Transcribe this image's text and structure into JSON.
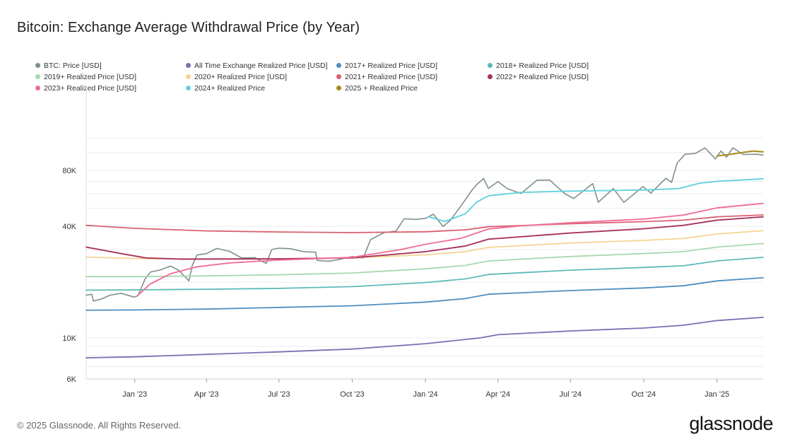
{
  "title": "Bitcoin: Exchange Average Withdrawal Price (by Year)",
  "footer": "© 2025 Glassnode. All Rights Reserved.",
  "logo": "glassnode",
  "chart_data": {
    "type": "line",
    "title": "Bitcoin: Exchange Average Withdrawal Price (by Year)",
    "yscale": "log",
    "ylim": [
      6000,
      130000
    ],
    "xlim": [
      "2022-11-01",
      "2025-02-28"
    ],
    "y_ticks": [
      {
        "value": 6000,
        "label": "6K"
      },
      {
        "value": 10000,
        "label": "10K"
      },
      {
        "value": 40000,
        "label": "40K"
      },
      {
        "value": 80000,
        "label": "80K"
      }
    ],
    "x_ticks": [
      {
        "date": "2023-01-01",
        "label": "Jan '23"
      },
      {
        "date": "2023-04-01",
        "label": "Apr '23"
      },
      {
        "date": "2023-07-01",
        "label": "Jul '23"
      },
      {
        "date": "2023-10-01",
        "label": "Oct '23"
      },
      {
        "date": "2024-01-01",
        "label": "Jan '24"
      },
      {
        "date": "2024-04-01",
        "label": "Apr '24"
      },
      {
        "date": "2024-07-01",
        "label": "Jul '24"
      },
      {
        "date": "2024-10-01",
        "label": "Oct '24"
      },
      {
        "date": "2025-01-01",
        "label": "Jan '25"
      }
    ],
    "legend_placement": "top",
    "grid": "horizontal",
    "series": [
      {
        "name": "BTC: Price [USD]",
        "color": "#7f918c",
        "width": 1.6,
        "points": [
          [
            "2022-11-01",
            17000
          ],
          [
            "2022-11-08",
            17200
          ],
          [
            "2022-11-10",
            15800
          ],
          [
            "2022-11-20",
            16200
          ],
          [
            "2022-12-01",
            17000
          ],
          [
            "2022-12-15",
            17400
          ],
          [
            "2022-12-31",
            16600
          ],
          [
            "2023-01-05",
            16900
          ],
          [
            "2023-01-14",
            20800
          ],
          [
            "2023-01-21",
            22700
          ],
          [
            "2023-02-01",
            23200
          ],
          [
            "2023-02-15",
            24400
          ],
          [
            "2023-02-25",
            23200
          ],
          [
            "2023-03-10",
            20300
          ],
          [
            "2023-03-14",
            24500
          ],
          [
            "2023-03-20",
            28000
          ],
          [
            "2023-04-01",
            28500
          ],
          [
            "2023-04-14",
            30400
          ],
          [
            "2023-04-30",
            29300
          ],
          [
            "2023-05-15",
            27000
          ],
          [
            "2023-06-01",
            27100
          ],
          [
            "2023-06-15",
            25200
          ],
          [
            "2023-06-22",
            30000
          ],
          [
            "2023-07-01",
            30500
          ],
          [
            "2023-07-15",
            30300
          ],
          [
            "2023-08-01",
            29200
          ],
          [
            "2023-08-16",
            29000
          ],
          [
            "2023-08-18",
            26200
          ],
          [
            "2023-09-01",
            25900
          ],
          [
            "2023-09-15",
            26500
          ],
          [
            "2023-10-01",
            27500
          ],
          [
            "2023-10-15",
            27000
          ],
          [
            "2023-10-24",
            33900
          ],
          [
            "2023-11-10",
            37000
          ],
          [
            "2023-11-25",
            37700
          ],
          [
            "2023-12-05",
            43900
          ],
          [
            "2023-12-20",
            43600
          ],
          [
            "2024-01-01",
            44200
          ],
          [
            "2024-01-11",
            46500
          ],
          [
            "2024-01-23",
            39900
          ],
          [
            "2024-02-01",
            43000
          ],
          [
            "2024-02-15",
            51800
          ],
          [
            "2024-02-28",
            62400
          ],
          [
            "2024-03-05",
            67000
          ],
          [
            "2024-03-14",
            72500
          ],
          [
            "2024-03-20",
            64000
          ],
          [
            "2024-04-01",
            69700
          ],
          [
            "2024-04-13",
            63800
          ],
          [
            "2024-04-30",
            60200
          ],
          [
            "2024-05-20",
            71000
          ],
          [
            "2024-06-05",
            71100
          ],
          [
            "2024-06-24",
            60000
          ],
          [
            "2024-07-05",
            56500
          ],
          [
            "2024-07-29",
            68000
          ],
          [
            "2024-08-05",
            54000
          ],
          [
            "2024-08-24",
            64000
          ],
          [
            "2024-09-06",
            53900
          ],
          [
            "2024-09-30",
            65500
          ],
          [
            "2024-10-10",
            60500
          ],
          [
            "2024-10-29",
            72700
          ],
          [
            "2024-11-05",
            69000
          ],
          [
            "2024-11-12",
            88000
          ],
          [
            "2024-11-22",
            98000
          ],
          [
            "2024-12-05",
            99000
          ],
          [
            "2024-12-17",
            106000
          ],
          [
            "2024-12-30",
            92500
          ],
          [
            "2025-01-06",
            102000
          ],
          [
            "2025-01-13",
            94500
          ],
          [
            "2025-01-21",
            106000
          ],
          [
            "2025-02-03",
            97700
          ],
          [
            "2025-02-20",
            98000
          ],
          [
            "2025-02-28",
            97000
          ]
        ]
      },
      {
        "name": "All Time Exchange Realized Price [USD]",
        "color": "#7b6fb2",
        "width": 1.8,
        "points": [
          [
            "2022-11-01",
            7800
          ],
          [
            "2023-01-01",
            7900
          ],
          [
            "2023-07-01",
            8400
          ],
          [
            "2023-10-01",
            8700
          ],
          [
            "2024-01-01",
            9300
          ],
          [
            "2024-03-10",
            10000
          ],
          [
            "2024-04-01",
            10400
          ],
          [
            "2024-07-01",
            10900
          ],
          [
            "2024-10-01",
            11300
          ],
          [
            "2024-11-20",
            11700
          ],
          [
            "2025-01-01",
            12400
          ],
          [
            "2025-02-28",
            12900
          ]
        ]
      },
      {
        "name": "2017+ Realized Price [USD]",
        "color": "#4f8fc0",
        "width": 1.8,
        "points": [
          [
            "2022-11-01",
            14100
          ],
          [
            "2023-01-01",
            14150
          ],
          [
            "2023-04-01",
            14300
          ],
          [
            "2023-07-01",
            14600
          ],
          [
            "2023-10-01",
            14900
          ],
          [
            "2024-01-01",
            15600
          ],
          [
            "2024-02-20",
            16300
          ],
          [
            "2024-03-20",
            17200
          ],
          [
            "2024-07-01",
            18000
          ],
          [
            "2024-10-01",
            18600
          ],
          [
            "2024-11-20",
            19100
          ],
          [
            "2025-01-01",
            20300
          ],
          [
            "2025-02-28",
            21100
          ]
        ]
      },
      {
        "name": "2018+ Realized Price [USD]",
        "color": "#5fb9b9",
        "width": 1.8,
        "points": [
          [
            "2022-11-01",
            18100
          ],
          [
            "2023-01-01",
            18150
          ],
          [
            "2023-04-01",
            18300
          ],
          [
            "2023-07-01",
            18500
          ],
          [
            "2023-10-01",
            18900
          ],
          [
            "2024-01-01",
            19900
          ],
          [
            "2024-02-20",
            20800
          ],
          [
            "2024-03-20",
            22000
          ],
          [
            "2024-07-01",
            23200
          ],
          [
            "2024-10-01",
            24000
          ],
          [
            "2024-11-20",
            24500
          ],
          [
            "2025-01-01",
            26000
          ],
          [
            "2025-02-28",
            27200
          ]
        ]
      },
      {
        "name": "2019+ Realized Price [USD]",
        "color": "#a8d8b0",
        "width": 1.8,
        "points": [
          [
            "2022-11-01",
            21400
          ],
          [
            "2023-01-01",
            21400
          ],
          [
            "2023-04-01",
            21600
          ],
          [
            "2023-07-01",
            21900
          ],
          [
            "2023-10-01",
            22400
          ],
          [
            "2024-01-01",
            23600
          ],
          [
            "2024-02-20",
            24600
          ],
          [
            "2024-03-20",
            26000
          ],
          [
            "2024-07-01",
            27500
          ],
          [
            "2024-10-01",
            28500
          ],
          [
            "2024-11-20",
            29200
          ],
          [
            "2025-01-01",
            30900
          ],
          [
            "2025-02-28",
            32300
          ]
        ]
      },
      {
        "name": "2020+ Realized Price [USD]",
        "color": "#f7d493",
        "width": 1.8,
        "points": [
          [
            "2022-11-01",
            27300
          ],
          [
            "2023-01-01",
            26800
          ],
          [
            "2023-04-01",
            26600
          ],
          [
            "2023-07-01",
            26700
          ],
          [
            "2023-10-01",
            27000
          ],
          [
            "2024-01-01",
            28100
          ],
          [
            "2024-02-20",
            29200
          ],
          [
            "2024-03-20",
            30800
          ],
          [
            "2024-07-01",
            32500
          ],
          [
            "2024-10-01",
            33600
          ],
          [
            "2024-11-20",
            34400
          ],
          [
            "2025-01-01",
            36400
          ],
          [
            "2025-02-28",
            37900
          ]
        ]
      },
      {
        "name": "2021+ Realized Price [USD]",
        "color": "#d9606f",
        "width": 1.8,
        "points": [
          [
            "2022-11-01",
            40500
          ],
          [
            "2023-01-01",
            39000
          ],
          [
            "2023-04-01",
            37800
          ],
          [
            "2023-07-01",
            37300
          ],
          [
            "2023-10-01",
            37000
          ],
          [
            "2024-01-01",
            37400
          ],
          [
            "2024-02-20",
            38300
          ],
          [
            "2024-03-20",
            39800
          ],
          [
            "2024-07-01",
            41300
          ],
          [
            "2024-10-01",
            42400
          ],
          [
            "2024-11-20",
            43200
          ],
          [
            "2025-01-01",
            45000
          ],
          [
            "2025-02-28",
            46100
          ]
        ]
      },
      {
        "name": "2022+ Realized Price [USD]",
        "color": "#a8335b",
        "width": 1.9,
        "points": [
          [
            "2022-11-01",
            30900
          ],
          [
            "2022-12-15",
            28500
          ],
          [
            "2023-01-15",
            27000
          ],
          [
            "2023-03-01",
            26600
          ],
          [
            "2023-07-01",
            26700
          ],
          [
            "2023-10-01",
            27000
          ],
          [
            "2024-01-01",
            29200
          ],
          [
            "2024-02-20",
            31300
          ],
          [
            "2024-03-20",
            34100
          ],
          [
            "2024-07-01",
            36800
          ],
          [
            "2024-10-01",
            38800
          ],
          [
            "2024-11-20",
            40500
          ],
          [
            "2025-01-01",
            43200
          ],
          [
            "2025-02-28",
            45000
          ]
        ]
      },
      {
        "name": "2023+ Realized Price [USD]",
        "color": "#ef6f96",
        "width": 1.9,
        "points": [
          [
            "2023-01-05",
            17000
          ],
          [
            "2023-01-20",
            19500
          ],
          [
            "2023-02-15",
            22200
          ],
          [
            "2023-03-20",
            24200
          ],
          [
            "2023-05-01",
            25400
          ],
          [
            "2023-07-01",
            26300
          ],
          [
            "2023-10-01",
            27200
          ],
          [
            "2023-12-01",
            30000
          ],
          [
            "2024-01-01",
            32000
          ],
          [
            "2024-02-15",
            34500
          ],
          [
            "2024-03-20",
            38700
          ],
          [
            "2024-05-01",
            40300
          ],
          [
            "2024-07-01",
            41800
          ],
          [
            "2024-10-01",
            43800
          ],
          [
            "2024-11-20",
            46000
          ],
          [
            "2025-01-01",
            50300
          ],
          [
            "2025-02-28",
            53200
          ]
        ]
      },
      {
        "name": "2024+ Realized Price",
        "color": "#62d2de",
        "width": 1.9,
        "points": [
          [
            "2024-01-05",
            45000
          ],
          [
            "2024-01-25",
            42500
          ],
          [
            "2024-02-20",
            46700
          ],
          [
            "2024-03-05",
            54000
          ],
          [
            "2024-03-20",
            58500
          ],
          [
            "2024-05-01",
            61000
          ],
          [
            "2024-07-01",
            62000
          ],
          [
            "2024-10-01",
            62800
          ],
          [
            "2024-11-15",
            64000
          ],
          [
            "2024-12-10",
            68300
          ],
          [
            "2025-01-01",
            70000
          ],
          [
            "2025-02-28",
            72200
          ]
        ]
      },
      {
        "name": "2025 + Realized Price",
        "color": "#a58d1f",
        "width": 2.0,
        "points": [
          [
            "2025-01-01",
            96000
          ],
          [
            "2025-01-15",
            97500
          ],
          [
            "2025-02-01",
            100000
          ],
          [
            "2025-02-15",
            102000
          ],
          [
            "2025-02-28",
            101000
          ]
        ]
      }
    ]
  }
}
